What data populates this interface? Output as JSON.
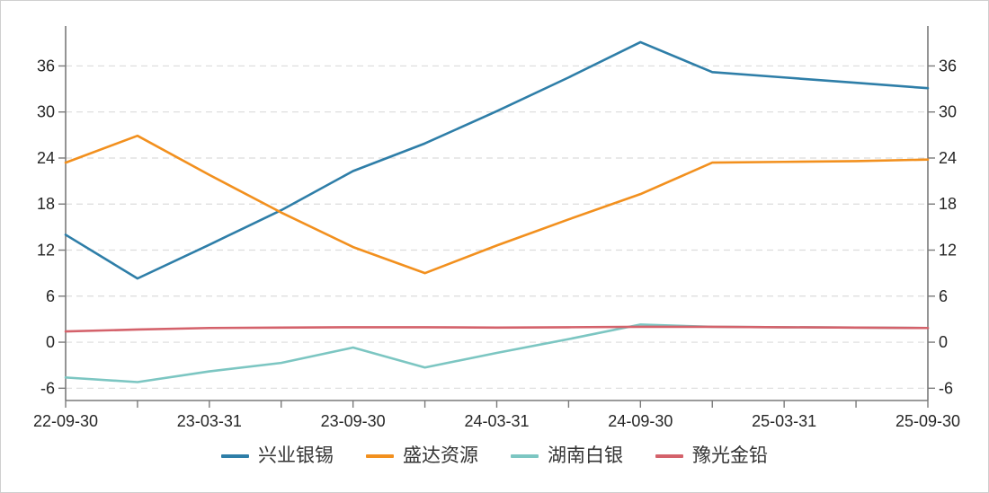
{
  "chart_data": {
    "type": "line",
    "title": "",
    "x": [
      "22-09-30",
      "22-12-31",
      "23-03-31",
      "23-06-30",
      "23-09-30",
      "23-12-31",
      "24-03-31",
      "24-06-30",
      "24-09-30",
      "24-12-31",
      "25-03-31",
      "25-06-30",
      "25-09-30"
    ],
    "x_tick_labels": [
      "22-09-30",
      "23-03-31",
      "23-09-30",
      "24-03-31",
      "24-09-30",
      "25-03-31",
      "25-09-30"
    ],
    "x_label_every": 2,
    "series": [
      {
        "name": "兴业银锡",
        "color": "#2e7ea8",
        "values": [
          14.0,
          8.3,
          12.7,
          17.2,
          22.3,
          25.9,
          30.1,
          34.5,
          39.1,
          35.2,
          34.5,
          33.8,
          33.1
        ]
      },
      {
        "name": "盛达资源",
        "color": "#f2901e",
        "values": [
          23.4,
          26.9,
          21.8,
          16.9,
          12.4,
          9.0,
          12.6,
          16.0,
          19.3,
          23.4,
          23.5,
          23.6,
          23.8
        ]
      },
      {
        "name": "湖南白银",
        "color": "#7cc6c2",
        "values": [
          -4.6,
          -5.2,
          -3.8,
          -2.7,
          -0.7,
          -3.3,
          -1.4,
          0.4,
          2.3,
          2.0,
          1.95,
          1.9,
          1.85
        ]
      },
      {
        "name": "豫光金铅",
        "color": "#d4626b",
        "values": [
          1.4,
          1.65,
          1.85,
          1.9,
          1.95,
          1.95,
          1.9,
          1.95,
          2.0,
          2.0,
          1.95,
          1.9,
          1.85
        ]
      }
    ],
    "y_ticks": [
      -6,
      0,
      6,
      12,
      18,
      24,
      30,
      36
    ],
    "ylim": [
      -7.6,
      41.2
    ],
    "grid": "horizontal-dashed",
    "dual_y_axis": true,
    "legend_position": "bottom-center"
  },
  "style": {
    "axis_color": "#7a7a7a",
    "grid_color": "#dcdcdc",
    "tick_label_color": "#262626",
    "background": "#ffffff",
    "line_width": 2.6
  }
}
